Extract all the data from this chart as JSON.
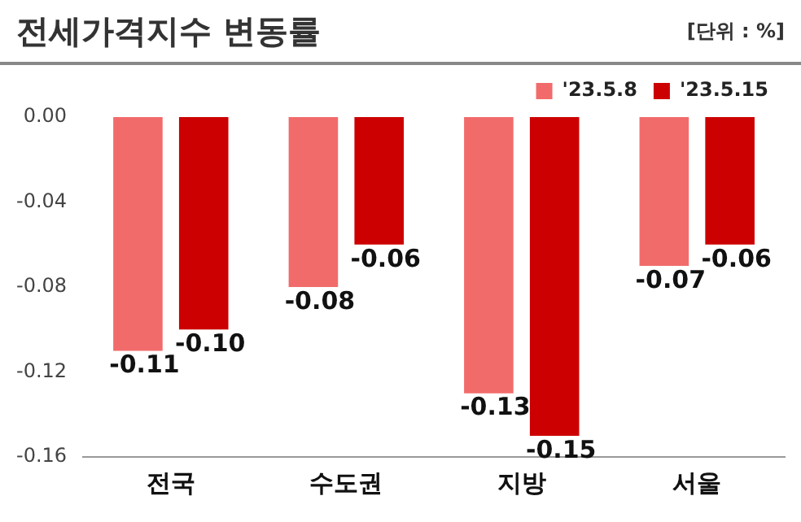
{
  "chart_data": {
    "type": "bar",
    "title": "전세가격지수 변동률",
    "subtitle": "[단위 : %]",
    "categories": [
      "전국",
      "수도권",
      "지방",
      "서울"
    ],
    "series": [
      {
        "name": "'23.5.8",
        "color": "#f26b6b",
        "values": [
          -0.11,
          -0.08,
          -0.13,
          -0.07
        ],
        "value_labels": [
          "-0.11",
          "-0.08",
          "-0.13",
          "-0.07"
        ]
      },
      {
        "name": "'23.5.15",
        "color": "#cc0000",
        "values": [
          -0.1,
          -0.06,
          -0.15,
          -0.06
        ],
        "value_labels": [
          "-0.10",
          "-0.06",
          "-0.15",
          "-0.06"
        ]
      }
    ],
    "ylim": [
      -0.16,
      0
    ],
    "yticks": [
      {
        "value": 0,
        "label": "0.00"
      },
      {
        "value": -0.04,
        "label": "-0.04"
      },
      {
        "value": -0.08,
        "label": "-0.08"
      },
      {
        "value": -0.12,
        "label": "-0.12"
      },
      {
        "value": -0.16,
        "label": "-0.16"
      }
    ],
    "grid": false,
    "legend": "top right"
  }
}
